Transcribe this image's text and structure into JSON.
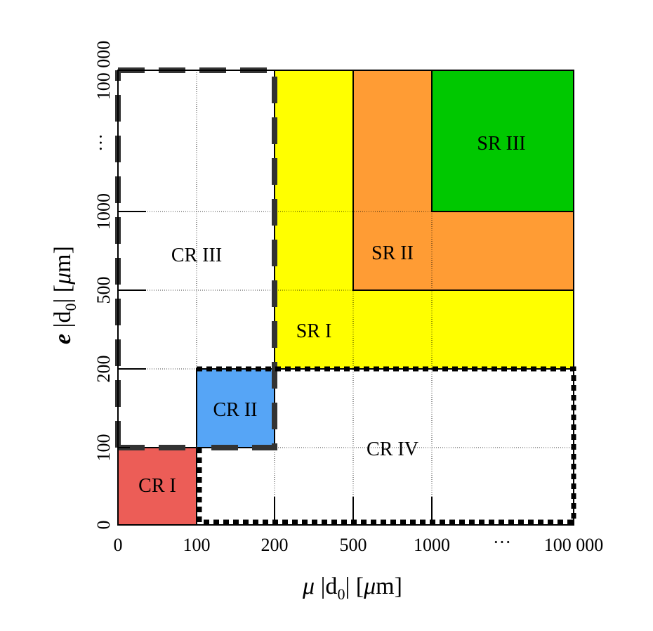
{
  "x_axis": {
    "label_prefix": "μ",
    "label_var": "|d",
    "label_sub": "0",
    "label_suffix": "| [",
    "label_unit_mu": "μ",
    "label_unit": "m]",
    "ticks": [
      "0",
      "100",
      "200",
      "500",
      "1000",
      "···",
      "100 000"
    ]
  },
  "y_axis": {
    "label_prefix": "e",
    "label_var": "|d",
    "label_sub": "0",
    "label_suffix": "| [",
    "label_unit_mu": "μ",
    "label_unit": "m]",
    "ticks": [
      "0",
      "100",
      "200",
      "500",
      "1000",
      "···",
      "100 000"
    ]
  },
  "regions": {
    "cr1": {
      "label": "CR I",
      "color": "#ec5d57"
    },
    "cr2": {
      "label": "CR II",
      "color": "#56a5f6"
    },
    "cr3": {
      "label": "CR III"
    },
    "cr4": {
      "label": "CR IV"
    },
    "sr1": {
      "label": "SR I",
      "color": "#ffff00"
    },
    "sr2": {
      "label": "SR II",
      "color": "#ff9c34"
    },
    "sr3": {
      "label": "SR III",
      "color": "#00c800"
    }
  }
}
